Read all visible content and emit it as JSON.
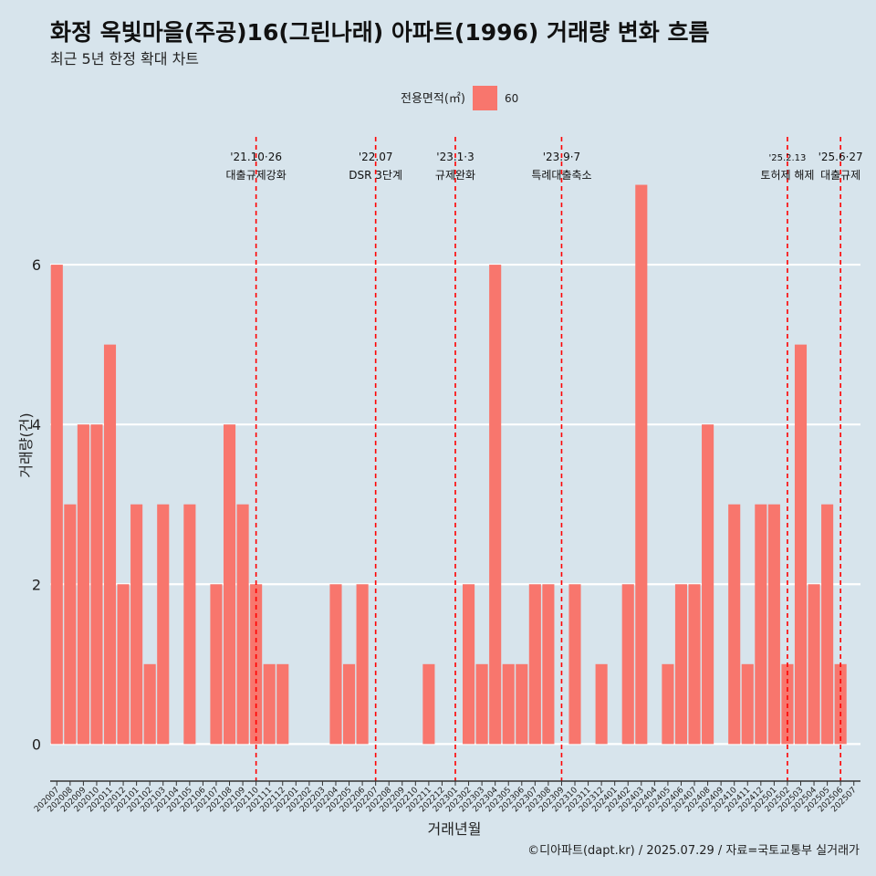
{
  "chart_data": {
    "type": "bar",
    "title": "화정 옥빛마을(주공)16(그린나래) 아파트(1996) 거래량 변화 흐름",
    "subtitle": "최근 5년 한정 확대 차트",
    "xlabel": "거래년월",
    "ylabel": "거래량(건)",
    "ylim": [
      -0.35,
      7.6
    ],
    "yticks": [
      0,
      2,
      4,
      6
    ],
    "grid": true,
    "legend": {
      "title": "전용면적(㎡)",
      "position": "top",
      "entries": [
        "60"
      ]
    },
    "categories": [
      "202007",
      "202008",
      "202009",
      "202010",
      "202011",
      "202012",
      "202101",
      "202102",
      "202103",
      "202104",
      "202105",
      "202106",
      "202107",
      "202108",
      "202109",
      "202110",
      "202111",
      "202112",
      "202201",
      "202202",
      "202203",
      "202204",
      "202205",
      "202206",
      "202207",
      "202208",
      "202209",
      "202210",
      "202211",
      "202212",
      "202301",
      "202302",
      "202303",
      "202304",
      "202305",
      "202306",
      "202307",
      "202308",
      "202309",
      "202310",
      "202311",
      "202312",
      "202401",
      "202402",
      "202403",
      "202404",
      "202405",
      "202406",
      "202407",
      "202408",
      "202409",
      "202410",
      "202411",
      "202412",
      "202501",
      "202502",
      "202503",
      "202504",
      "202505",
      "202506",
      "202507"
    ],
    "series": [
      {
        "name": "60",
        "color": "#f8766d",
        "values": [
          6,
          3,
          4,
          4,
          5,
          2,
          3,
          1,
          3,
          0,
          3,
          0,
          2,
          4,
          3,
          2,
          1,
          1,
          0,
          0,
          0,
          2,
          1,
          2,
          0,
          0,
          0,
          0,
          1,
          0,
          0,
          2,
          1,
          6,
          1,
          1,
          2,
          2,
          0,
          2,
          0,
          1,
          0,
          2,
          7,
          0,
          1,
          2,
          2,
          4,
          0,
          3,
          1,
          3,
          3,
          1,
          5,
          2,
          3,
          1,
          0
        ]
      }
    ],
    "annotations": [
      {
        "month": "202110",
        "date": "'21.10·26",
        "label": "대출규제강화",
        "small": false
      },
      {
        "month": "202207",
        "date": "'22.07",
        "label": "DSR 3단계",
        "small": false
      },
      {
        "month": "202301",
        "date": "'23.1·3",
        "label": "규제완화",
        "small": false
      },
      {
        "month": "202309",
        "date": "'23.9·7",
        "label": "특례대출축소",
        "small": false
      },
      {
        "month": "202502",
        "date": "'25.2.13",
        "label": "토허제 해제",
        "small": true
      },
      {
        "month": "202506",
        "date": "'25.6·27",
        "label": "대출규제",
        "small": false
      }
    ],
    "annotation_color": "#ff0000",
    "caption": "©디아파트(dapt.kr) / 2025.07.29 / 자료=국토교통부 실거래가"
  }
}
